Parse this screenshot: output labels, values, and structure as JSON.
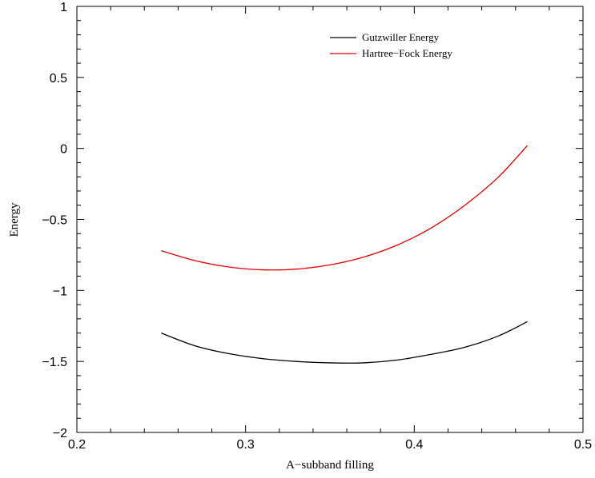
{
  "chart_data": {
    "type": "line",
    "title": "",
    "xlabel": "A−subband filling",
    "ylabel": "Energy",
    "xlim": [
      0.2,
      0.5
    ],
    "ylim": [
      -2,
      1
    ],
    "xticks": [
      "0.2",
      "0.3",
      "0.4",
      "0.5"
    ],
    "yticks": [
      "1",
      "0.5",
      "0",
      "−0.5",
      "−1",
      "−1.5",
      "−2"
    ],
    "grid": false,
    "legend_position": "top-right",
    "series": [
      {
        "name": "Gutzwiller Energy",
        "color": "#000000",
        "x": [
          0.25,
          0.27,
          0.29,
          0.31,
          0.33,
          0.35,
          0.37,
          0.39,
          0.41,
          0.43,
          0.45,
          0.467
        ],
        "y": [
          -1.3,
          -1.39,
          -1.445,
          -1.48,
          -1.5,
          -1.51,
          -1.51,
          -1.49,
          -1.45,
          -1.4,
          -1.32,
          -1.22
        ]
      },
      {
        "name": "Hartree−Fock Energy",
        "color": "#e00000",
        "x": [
          0.25,
          0.27,
          0.29,
          0.31,
          0.33,
          0.35,
          0.37,
          0.39,
          0.41,
          0.43,
          0.45,
          0.467
        ],
        "y": [
          -0.72,
          -0.79,
          -0.835,
          -0.855,
          -0.85,
          -0.82,
          -0.765,
          -0.68,
          -0.56,
          -0.4,
          -0.2,
          0.02
        ]
      }
    ]
  }
}
